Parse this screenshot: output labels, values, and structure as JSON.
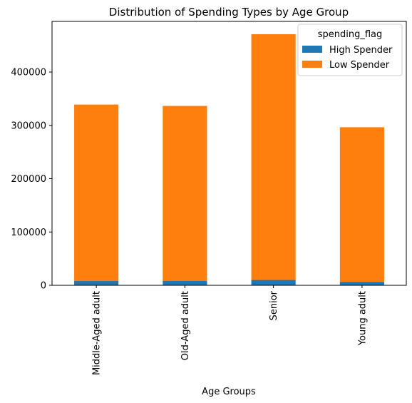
{
  "chart_data": {
    "type": "bar",
    "stacked": true,
    "title": "Distribution of Spending Types by Age Group",
    "xlabel": "Age Groups",
    "ylabel": "",
    "categories": [
      "Middle-Aged adult",
      "Old-Aged adult",
      "Senior",
      "Young adult"
    ],
    "series": [
      {
        "name": "High Spender",
        "color": "#1f77b4",
        "values": [
          8000,
          8500,
          10000,
          6500
        ]
      },
      {
        "name": "Low Spender",
        "color": "#ff7f0e",
        "values": [
          331000,
          328000,
          461000,
          290000
        ]
      }
    ],
    "ylim": [
      0,
      495000
    ],
    "yticks": [
      0,
      100000,
      200000,
      300000,
      400000
    ],
    "ytick_labels": [
      "0",
      "100000",
      "200000",
      "300000",
      "400000"
    ],
    "grid": false,
    "legend": {
      "title": "spending_flag",
      "placement": "top-right"
    }
  }
}
